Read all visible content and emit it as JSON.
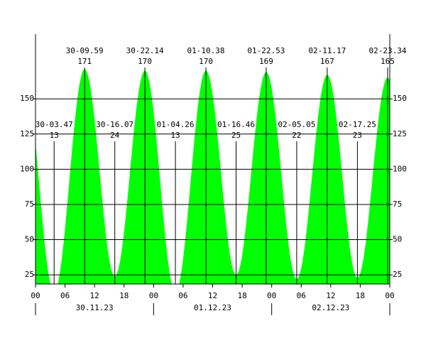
{
  "chart_data": {
    "type": "tide",
    "x": [
      3.783,
      9.983,
      16.117,
      22.233,
      28.433,
      34.633,
      40.767,
      46.883,
      53.083,
      59.283,
      65.417,
      71.567
    ],
    "time_labels": [
      "30-03.47",
      "30-09.59",
      "30-16.07",
      "30-22.14",
      "01-04.26",
      "01-10.38",
      "01-16.46",
      "01-22.53",
      "02-05.05",
      "02-11.17",
      "02-17.25",
      "02-23.34"
    ],
    "values": [
      13,
      171,
      24,
      170,
      13,
      170,
      25,
      169,
      22,
      167,
      23,
      165
    ],
    "color": "#00ff00",
    "xlim": [
      0,
      72
    ],
    "ylim": [
      18.5,
      196
    ],
    "yticks": [
      25,
      50,
      75,
      100,
      125,
      150
    ],
    "xticks": [
      {
        "value": 0,
        "label": "00"
      },
      {
        "value": 6,
        "label": "06"
      },
      {
        "value": 12,
        "label": "12"
      },
      {
        "value": 18,
        "label": "18"
      },
      {
        "value": 24,
        "label": "00"
      },
      {
        "value": 30,
        "label": "06"
      },
      {
        "value": 36,
        "label": "12"
      },
      {
        "value": 42,
        "label": "18"
      },
      {
        "value": 48,
        "label": "00"
      },
      {
        "value": 54,
        "label": "06"
      },
      {
        "value": 60,
        "label": "12"
      },
      {
        "value": 66,
        "label": "18"
      },
      {
        "value": 72,
        "label": "00"
      }
    ],
    "x_groups": [
      {
        "value": 12,
        "label": "30.11.23"
      },
      {
        "value": 36,
        "label": "01.12.23"
      },
      {
        "value": 60,
        "label": "02.12.23"
      }
    ],
    "grid": true
  }
}
